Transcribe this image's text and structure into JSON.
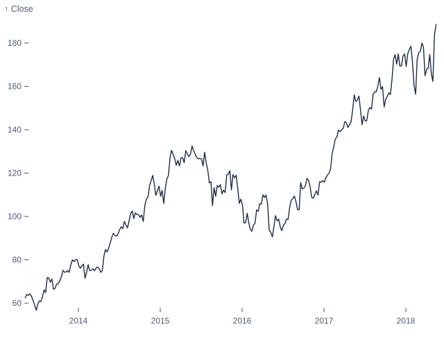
{
  "header": {
    "y_axis_title": "↑ Close"
  },
  "chart_data": {
    "type": "line",
    "title": "↑ Close",
    "series_name": "Close",
    "legend": "none",
    "grid": false,
    "x_unit": "decimal_year",
    "x_start": 2013.35,
    "x_step": 0.019231,
    "xlim": [
      2013.35,
      2018.37
    ],
    "ylim": [
      56,
      190
    ],
    "x_ticks": [
      "2014",
      "2015",
      "2016",
      "2017",
      "2018"
    ],
    "y_ticks": [
      "60",
      "80",
      "100",
      "120",
      "140",
      "160",
      "180"
    ],
    "line_color": "#1c2b45",
    "axis_color": "#4c5b70",
    "background": "#ffffff",
    "values": [
      62.5,
      64.0,
      63.6,
      64.3,
      63.1,
      61.4,
      59.1,
      56.7,
      59.6,
      61.0,
      60.7,
      63.0,
      66.1,
      64.9,
      71.8,
      71.6,
      69.6,
      71.2,
      66.4,
      66.8,
      68.9,
      69.0,
      70.4,
      72.1,
      75.1,
      74.3,
      74.4,
      75.0,
      74.2,
      77.8,
      80.0,
      79.2,
      80.0,
      80.1,
      77.3,
      76.1,
      77.2,
      78.0,
      71.5,
      74.2,
      77.7,
      75.0,
      75.2,
      75.8,
      74.9,
      76.1,
      76.7,
      75.9,
      74.2,
      75.0,
      81.7,
      84.7,
      83.6,
      85.4,
      87.7,
      90.4,
      92.2,
      91.3,
      90.9,
      92.0,
      94.0,
      95.2,
      94.4,
      97.7,
      96.1,
      94.7,
      98.0,
      101.3,
      102.5,
      99.0,
      101.7,
      101.0,
      100.8,
      99.6,
      100.7,
      97.7,
      105.2,
      108.0,
      109.0,
      114.2,
      116.5,
      118.9,
      115.0,
      109.7,
      111.8,
      114.0,
      109.3,
      112.0,
      106.0,
      113.0,
      117.2,
      118.9,
      127.1,
      130.5,
      128.6,
      126.6,
      123.6,
      125.9,
      123.3,
      127.1,
      127.1,
      124.8,
      130.3,
      129.0,
      127.6,
      128.8,
      132.5,
      130.3,
      128.7,
      127.2,
      126.6,
      126.8,
      126.4,
      123.3,
      129.6,
      124.5,
      121.3,
      115.5,
      116.0,
      105.0,
      113.3,
      109.3,
      114.2,
      113.5,
      114.7,
      110.4,
      112.1,
      111.0,
      119.1,
      119.5,
      121.1,
      112.3,
      119.3,
      117.8,
      119.0,
      113.2,
      106.0,
      108.0,
      105.3,
      97.0,
      97.1,
      101.4,
      97.3,
      94.0,
      93.2,
      96.0,
      96.9,
      103.0,
      102.3,
      105.9,
      105.7,
      110.0,
      108.7,
      109.9,
      105.7,
      93.7,
      92.7,
      90.5,
      95.2,
      100.4,
      97.9,
      98.8,
      95.3,
      93.4,
      95.9,
      96.7,
      98.8,
      98.7,
      104.2,
      107.5,
      108.2,
      109.4,
      106.9,
      103.1,
      103.1,
      115.6,
      112.7,
      113.1,
      114.1,
      117.6,
      116.6,
      113.7,
      108.8,
      108.4,
      110.1,
      111.8,
      109.9,
      116.0,
      115.8,
      116.5,
      115.8,
      117.9,
      119.0,
      120.0,
      122.0,
      129.1,
      132.1,
      135.7,
      136.7,
      139.8,
      139.1,
      140.0,
      140.6,
      143.7,
      143.3,
      141.1,
      142.3,
      143.7,
      149.0,
      156.1,
      153.1,
      153.6,
      155.5,
      149.0,
      142.3,
      146.3,
      144.0,
      144.2,
      149.0,
      150.3,
      149.5,
      156.4,
      157.5,
      157.5,
      159.9,
      164.1,
      158.6,
      159.9,
      150.5,
      154.1,
      155.3,
      157.0,
      156.3,
      163.1,
      172.5,
      174.7,
      170.2,
      175.0,
      169.4,
      169.4,
      174.0,
      175.0,
      169.2,
      175.0,
      177.1,
      178.5,
      171.5,
      160.5,
      156.4,
      172.4,
      175.5,
      176.2,
      180.0,
      178.0,
      164.9,
      167.8,
      168.4,
      174.7,
      165.7,
      162.3,
      183.8,
      188.6
    ]
  }
}
